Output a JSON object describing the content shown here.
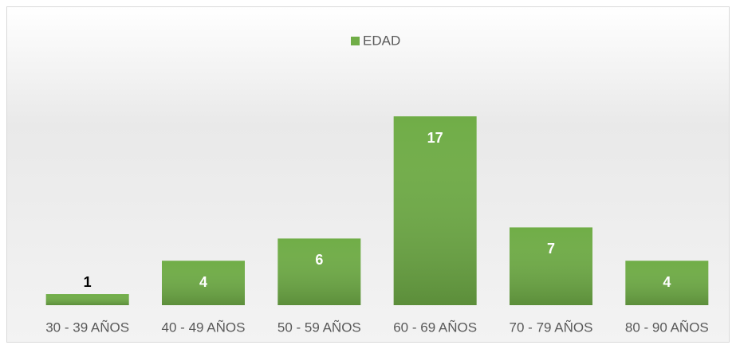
{
  "chart_data": {
    "type": "bar",
    "legend": "EDAD",
    "color": "#70ad47",
    "categories": [
      "30 - 39 AÑOS",
      "40 - 49 AÑOS",
      "50 - 59 AÑOS",
      "60 - 69 AÑOS",
      "70 - 79 AÑOS",
      "80 - 90 AÑOS"
    ],
    "values": [
      1,
      4,
      6,
      17,
      7,
      4
    ]
  }
}
